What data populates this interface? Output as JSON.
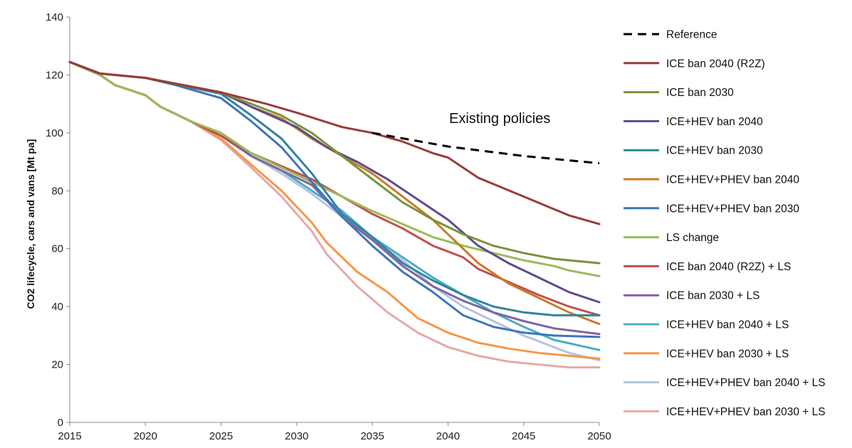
{
  "chart_data": {
    "type": "line",
    "title": "",
    "xlabel": "",
    "ylabel": "CO2 lifecycle, cars and vans [Mt pa]",
    "xlim": [
      2015,
      2050
    ],
    "ylim": [
      0,
      140
    ],
    "x_ticks": [
      "2015",
      "2020",
      "2025",
      "2030",
      "2035",
      "2040",
      "2045",
      "2050"
    ],
    "y_ticks": [
      "0",
      "20",
      "40",
      "60",
      "80",
      "100",
      "120",
      "140"
    ],
    "grid": false,
    "legend_position": "right",
    "annotation": "Existing policies",
    "series": [
      {
        "name": "Reference",
        "color": "#000000",
        "dashed": true,
        "points": [
          [
            2035,
            100
          ],
          [
            2040,
            95.3
          ],
          [
            2045,
            92
          ],
          [
            2050,
            89.5
          ]
        ]
      },
      {
        "name": "ICE ban 2040 (R2Z)",
        "color": "#9b3b38",
        "dashed": false,
        "points": [
          [
            2015,
            124.5
          ],
          [
            2017,
            120.5
          ],
          [
            2020,
            119
          ],
          [
            2025,
            114
          ],
          [
            2028,
            110
          ],
          [
            2030,
            107
          ],
          [
            2033,
            102
          ],
          [
            2035,
            100
          ],
          [
            2037,
            97
          ],
          [
            2039,
            93
          ],
          [
            2040,
            91.5
          ],
          [
            2042,
            84.5
          ],
          [
            2045,
            78
          ],
          [
            2048,
            71.5
          ],
          [
            2050,
            68.5
          ]
        ]
      },
      {
        "name": "ICE ban 2030",
        "color": "#77933c",
        "dashed": false,
        "points": [
          [
            2015,
            124.5
          ],
          [
            2017,
            120.5
          ],
          [
            2020,
            119
          ],
          [
            2025,
            114
          ],
          [
            2027,
            110
          ],
          [
            2029,
            106
          ],
          [
            2031,
            100
          ],
          [
            2033,
            92
          ],
          [
            2035,
            84
          ],
          [
            2037,
            76
          ],
          [
            2039,
            70
          ],
          [
            2041,
            65
          ],
          [
            2043,
            61
          ],
          [
            2045,
            58.5
          ],
          [
            2047,
            56.5
          ],
          [
            2050,
            55
          ]
        ]
      },
      {
        "name": "ICE+HEV ban 2040",
        "color": "#5f4b8b",
        "dashed": false,
        "points": [
          [
            2015,
            124.5
          ],
          [
            2017,
            120.5
          ],
          [
            2020,
            119
          ],
          [
            2025,
            114
          ],
          [
            2027,
            109
          ],
          [
            2030,
            102
          ],
          [
            2032,
            95
          ],
          [
            2034,
            90
          ],
          [
            2036,
            84
          ],
          [
            2038,
            77
          ],
          [
            2040,
            70
          ],
          [
            2042,
            61
          ],
          [
            2044,
            55
          ],
          [
            2046,
            50
          ],
          [
            2048,
            45
          ],
          [
            2050,
            41.5
          ]
        ]
      },
      {
        "name": "ICE+HEV ban 2030",
        "color": "#31859c",
        "dashed": false,
        "points": [
          [
            2015,
            124.5
          ],
          [
            2017,
            120.5
          ],
          [
            2020,
            119
          ],
          [
            2025,
            113.5
          ],
          [
            2027,
            106
          ],
          [
            2029,
            98
          ],
          [
            2031,
            86
          ],
          [
            2033,
            72
          ],
          [
            2035,
            64
          ],
          [
            2037,
            55
          ],
          [
            2039,
            49
          ],
          [
            2041,
            44
          ],
          [
            2043,
            40
          ],
          [
            2045,
            38
          ],
          [
            2047,
            37
          ],
          [
            2050,
            37
          ]
        ]
      },
      {
        "name": "ICE+HEV+PHEV ban 2040",
        "color": "#cc7a29",
        "dashed": false,
        "points": [
          [
            2015,
            124.5
          ],
          [
            2017,
            120.5
          ],
          [
            2020,
            119
          ],
          [
            2025,
            114
          ],
          [
            2027,
            109
          ],
          [
            2029,
            105
          ],
          [
            2031,
            98
          ],
          [
            2033,
            92
          ],
          [
            2035,
            86
          ],
          [
            2037,
            78
          ],
          [
            2039,
            70
          ],
          [
            2040,
            65
          ],
          [
            2042,
            55
          ],
          [
            2044,
            48
          ],
          [
            2046,
            43
          ],
          [
            2048,
            38
          ],
          [
            2050,
            34
          ]
        ]
      },
      {
        "name": "ICE+HEV+PHEV ban 2030",
        "color": "#3f75b9",
        "dashed": false,
        "points": [
          [
            2015,
            124.5
          ],
          [
            2017,
            120.5
          ],
          [
            2020,
            119
          ],
          [
            2022,
            116.5
          ],
          [
            2025,
            112
          ],
          [
            2027,
            104
          ],
          [
            2029,
            95
          ],
          [
            2031,
            83
          ],
          [
            2033,
            71
          ],
          [
            2035,
            61
          ],
          [
            2037,
            52
          ],
          [
            2039,
            45
          ],
          [
            2041,
            37
          ],
          [
            2043,
            33
          ],
          [
            2045,
            31
          ],
          [
            2047,
            30
          ],
          [
            2050,
            29.5
          ]
        ]
      },
      {
        "name": "LS change",
        "color": "#9bbb59",
        "dashed": false,
        "points": [
          [
            2015,
            124.5
          ],
          [
            2017,
            120
          ],
          [
            2018,
            116.5
          ],
          [
            2020,
            113
          ],
          [
            2021,
            109
          ],
          [
            2023,
            104
          ],
          [
            2025,
            100
          ],
          [
            2027,
            93
          ],
          [
            2029,
            88
          ],
          [
            2031,
            83
          ],
          [
            2033,
            78
          ],
          [
            2035,
            73
          ],
          [
            2037,
            68.5
          ],
          [
            2039,
            64
          ],
          [
            2041,
            61
          ],
          [
            2043,
            58.5
          ],
          [
            2045,
            56
          ],
          [
            2047,
            54
          ],
          [
            2048,
            52.5
          ],
          [
            2050,
            50.5
          ]
        ]
      },
      {
        "name": "ICE ban 2040 (R2Z) + LS",
        "color": "#c0504d",
        "dashed": false,
        "points": [
          [
            2015,
            124.5
          ],
          [
            2017,
            120
          ],
          [
            2018,
            116.5
          ],
          [
            2020,
            113
          ],
          [
            2021,
            109
          ],
          [
            2023,
            104
          ],
          [
            2025,
            99
          ],
          [
            2027,
            93
          ],
          [
            2029,
            88.5
          ],
          [
            2031,
            84
          ],
          [
            2033,
            78
          ],
          [
            2035,
            72
          ],
          [
            2037,
            67
          ],
          [
            2039,
            61
          ],
          [
            2041,
            57
          ],
          [
            2042,
            53
          ],
          [
            2044,
            48.5
          ],
          [
            2046,
            44
          ],
          [
            2048,
            40
          ],
          [
            2050,
            37
          ]
        ]
      },
      {
        "name": "ICE ban 2030 + LS",
        "color": "#8064a2",
        "dashed": false,
        "points": [
          [
            2015,
            124.5
          ],
          [
            2017,
            120
          ],
          [
            2018,
            116.5
          ],
          [
            2020,
            113
          ],
          [
            2021,
            109
          ],
          [
            2023,
            104
          ],
          [
            2025,
            99
          ],
          [
            2027,
            92
          ],
          [
            2029,
            87
          ],
          [
            2031,
            82
          ],
          [
            2033,
            71
          ],
          [
            2035,
            63
          ],
          [
            2037,
            54
          ],
          [
            2039,
            47
          ],
          [
            2041,
            42
          ],
          [
            2043,
            38
          ],
          [
            2045,
            35
          ],
          [
            2047,
            32.5
          ],
          [
            2050,
            30.5
          ]
        ]
      },
      {
        "name": "ICE+HEV ban 2040 + LS",
        "color": "#4bacc6",
        "dashed": false,
        "points": [
          [
            2015,
            124.5
          ],
          [
            2017,
            120
          ],
          [
            2018,
            116.5
          ],
          [
            2020,
            113
          ],
          [
            2021,
            109
          ],
          [
            2023,
            104
          ],
          [
            2025,
            99
          ],
          [
            2027,
            92
          ],
          [
            2029,
            87
          ],
          [
            2031,
            80
          ],
          [
            2033,
            73
          ],
          [
            2035,
            64
          ],
          [
            2037,
            57
          ],
          [
            2039,
            50
          ],
          [
            2041,
            44
          ],
          [
            2043,
            38
          ],
          [
            2045,
            33
          ],
          [
            2047,
            28.5
          ],
          [
            2050,
            25
          ]
        ]
      },
      {
        "name": "ICE+HEV ban 2030 + LS",
        "color": "#f79646",
        "dashed": false,
        "points": [
          [
            2015,
            124.5
          ],
          [
            2017,
            120
          ],
          [
            2018,
            116.5
          ],
          [
            2020,
            113
          ],
          [
            2021,
            109
          ],
          [
            2023,
            104
          ],
          [
            2025,
            98
          ],
          [
            2027,
            89
          ],
          [
            2029,
            80
          ],
          [
            2031,
            69
          ],
          [
            2032,
            62
          ],
          [
            2034,
            52
          ],
          [
            2036,
            45
          ],
          [
            2038,
            36
          ],
          [
            2040,
            31
          ],
          [
            2042,
            27.5
          ],
          [
            2044,
            25.5
          ],
          [
            2046,
            24
          ],
          [
            2048,
            23
          ],
          [
            2050,
            22
          ]
        ]
      },
      {
        "name": "ICE+HEV+PHEV ban 2040 + LS",
        "color": "#b3c4e0",
        "dashed": false,
        "points": [
          [
            2015,
            124.5
          ],
          [
            2017,
            120
          ],
          [
            2018,
            116.5
          ],
          [
            2020,
            113
          ],
          [
            2021,
            109
          ],
          [
            2023,
            104
          ],
          [
            2025,
            99
          ],
          [
            2027,
            92
          ],
          [
            2029,
            86
          ],
          [
            2031,
            79
          ],
          [
            2033,
            71
          ],
          [
            2035,
            63
          ],
          [
            2037,
            56
          ],
          [
            2039,
            47
          ],
          [
            2041,
            40
          ],
          [
            2043,
            35
          ],
          [
            2045,
            30
          ],
          [
            2047,
            26
          ],
          [
            2048,
            24
          ],
          [
            2050,
            21.5
          ]
        ]
      },
      {
        "name": "ICE+HEV+PHEV ban 2030 + LS",
        "color": "#e6a9a7",
        "dashed": false,
        "points": [
          [
            2015,
            124.5
          ],
          [
            2017,
            120
          ],
          [
            2018,
            116.5
          ],
          [
            2020,
            113
          ],
          [
            2021,
            109
          ],
          [
            2023,
            104
          ],
          [
            2025,
            97.5
          ],
          [
            2027,
            88
          ],
          [
            2029,
            78
          ],
          [
            2031,
            66
          ],
          [
            2032,
            58
          ],
          [
            2034,
            47
          ],
          [
            2036,
            38
          ],
          [
            2038,
            31
          ],
          [
            2040,
            26
          ],
          [
            2042,
            23
          ],
          [
            2044,
            21
          ],
          [
            2046,
            20
          ],
          [
            2048,
            19
          ],
          [
            2050,
            19
          ]
        ]
      }
    ]
  }
}
